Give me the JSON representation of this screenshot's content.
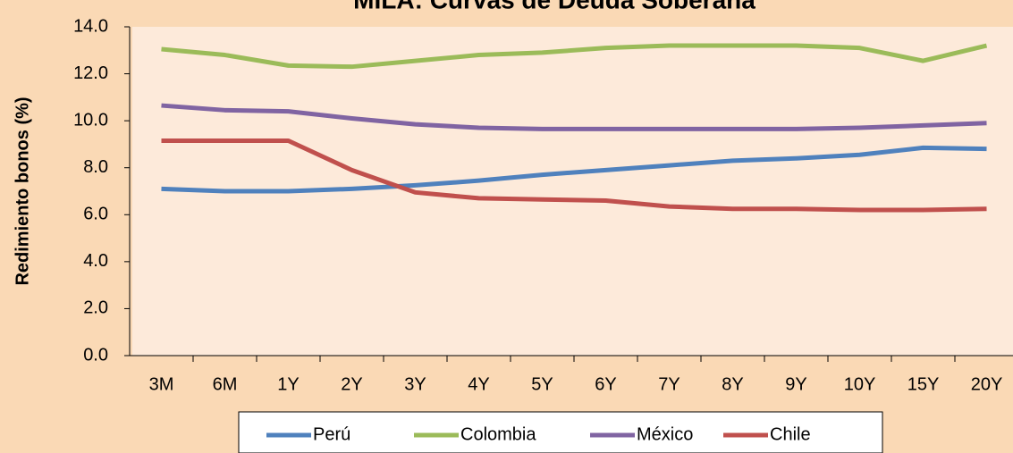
{
  "chart_data": {
    "type": "line",
    "title": "MILA: Curvas de Deuda Soberana",
    "y_label": "Redimiento bonos (%)",
    "categories": [
      "3M",
      "6M",
      "1Y",
      "2Y",
      "3Y",
      "4Y",
      "5Y",
      "6Y",
      "7Y",
      "8Y",
      "9Y",
      "10Y",
      "15Y",
      "20Y"
    ],
    "series": [
      {
        "name": "Perú",
        "color": "#4f81bd",
        "values": [
          7.1,
          7.0,
          7.0,
          7.1,
          7.25,
          7.45,
          7.7,
          7.9,
          8.1,
          8.3,
          8.4,
          8.55,
          8.85,
          8.8
        ]
      },
      {
        "name": "Colombia",
        "color": "#9bbb59",
        "values": [
          13.05,
          12.8,
          12.35,
          12.3,
          12.55,
          12.8,
          12.9,
          13.1,
          13.2,
          13.2,
          13.2,
          13.1,
          12.55,
          13.2
        ]
      },
      {
        "name": "México",
        "color": "#8064a2",
        "values": [
          10.65,
          10.45,
          10.4,
          10.1,
          9.85,
          9.7,
          9.65,
          9.65,
          9.65,
          9.65,
          9.65,
          9.7,
          9.8,
          9.9
        ]
      },
      {
        "name": "Chile",
        "color": "#c0504d",
        "values": [
          9.15,
          9.15,
          9.15,
          7.9,
          6.95,
          6.7,
          6.65,
          6.6,
          6.35,
          6.25,
          6.25,
          6.2,
          6.2,
          6.25
        ]
      }
    ],
    "ylim": [
      0,
      14
    ],
    "yticks": [
      {
        "value": 0,
        "label": "0.0"
      },
      {
        "value": 2,
        "label": "2.0"
      },
      {
        "value": 4,
        "label": "4.0"
      },
      {
        "value": 6,
        "label": "6.0"
      },
      {
        "value": 8,
        "label": "8.0"
      },
      {
        "value": 10,
        "label": "10.0"
      },
      {
        "value": 12,
        "label": "12.0"
      },
      {
        "value": 14,
        "label": "14.0"
      }
    ],
    "legend_position": "bottom"
  }
}
